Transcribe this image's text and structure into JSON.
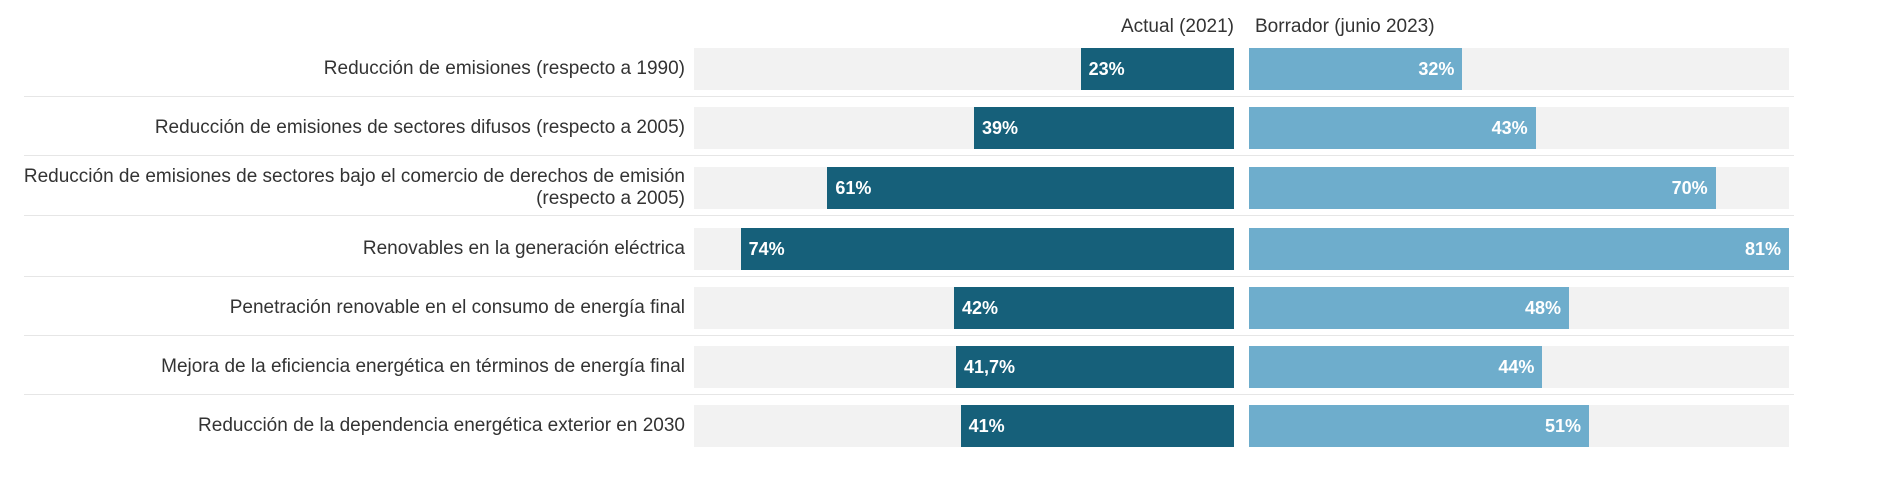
{
  "chart_data": {
    "type": "bar",
    "orientation": "horizontal-split",
    "categories": [
      "Reducción de emisiones (respecto a 1990)",
      "Reducción de emisiones de sectores difusos (respecto a 2005)",
      "Reducción de emisiones de sectores bajo el comercio de derechos de emisión\n(respecto a 2005)",
      "Renovables en la generación eléctrica",
      "Penetración renovable en el consumo de energía final",
      "Mejora de la eficiencia energética en términos de energía final",
      "Reducción de la dependencia energética exterior en 2030"
    ],
    "series": [
      {
        "name": "Actual (2021)",
        "color": "#16607a",
        "values": [
          23,
          39,
          61,
          74,
          42,
          41.7,
          41
        ],
        "labels": [
          "23%",
          "39%",
          "61%",
          "74%",
          "42%",
          "41,7%",
          "41%"
        ]
      },
      {
        "name": "Borrador (junio 2023)",
        "color": "#6eadcc",
        "values": [
          32,
          43,
          70,
          81,
          48,
          44,
          51
        ],
        "labels": [
          "32%",
          "43%",
          "70%",
          "81%",
          "48%",
          "44%",
          "51%"
        ]
      }
    ],
    "xlim": [
      0,
      81
    ],
    "track_color": "#f2f2f2",
    "grid": false
  }
}
